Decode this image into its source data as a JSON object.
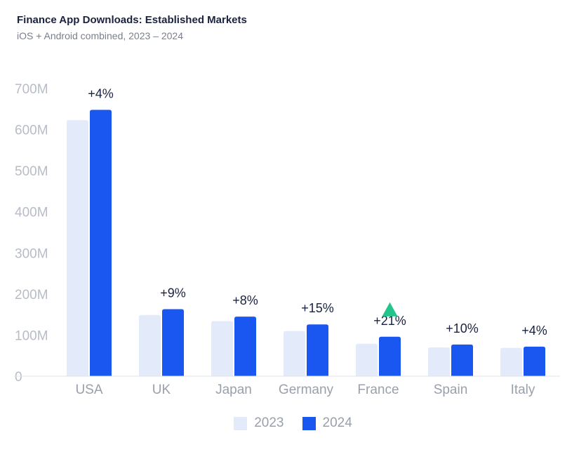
{
  "title": "Finance App Downloads: Established Markets",
  "subtitle": "iOS + Android combined, 2023 – 2024",
  "colors": {
    "series_2023": "#e3ebfb",
    "series_2024": "#1a56f0",
    "highlight_marker": "#22c58b"
  },
  "legend": {
    "item_2023": "2023",
    "item_2024": "2024",
    "placement": "bottom-center"
  },
  "chart_data": {
    "type": "bar",
    "title": "Finance App Downloads: Established Markets",
    "subtitle": "iOS + Android combined, 2023 – 2024",
    "xlabel": "",
    "ylabel": "",
    "ylim": [
      0,
      700
    ],
    "y_unit": "M",
    "yticks": [
      0,
      100,
      200,
      300,
      400,
      500,
      600,
      700
    ],
    "ytick_labels": [
      "0",
      "100M",
      "200M",
      "300M",
      "400M",
      "500M",
      "600M",
      "700M"
    ],
    "grid": false,
    "categories": [
      "USA",
      "UK",
      "Japan",
      "Germany",
      "France",
      "Spain",
      "Italy"
    ],
    "series": [
      {
        "name": "2023",
        "values": [
          623,
          149,
          134,
          110,
          79,
          70,
          69
        ]
      },
      {
        "name": "2024",
        "values": [
          648,
          163,
          145,
          126,
          96,
          77,
          72
        ]
      }
    ],
    "annotations": [
      "+4%",
      "+9%",
      "+8%",
      "+15%",
      "+21%",
      "+10%",
      "+4%"
    ],
    "highlight_category": "France",
    "highlight_marker": "triangle-up-icon"
  }
}
